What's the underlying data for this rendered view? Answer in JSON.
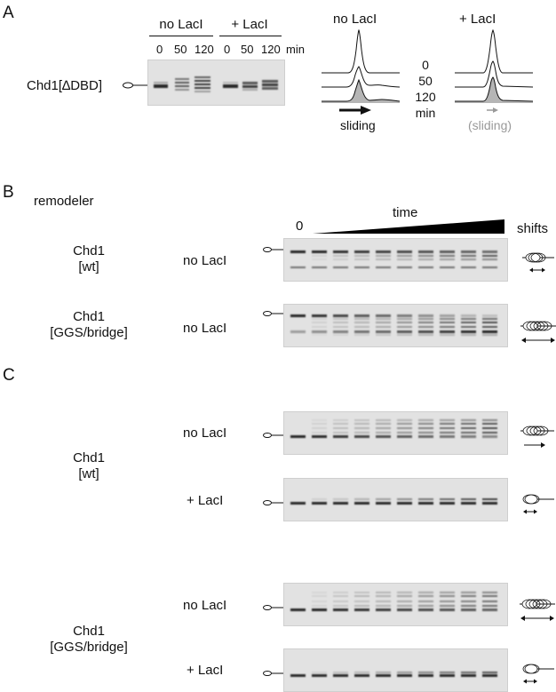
{
  "panels": {
    "a": "A",
    "b": "B",
    "c": "C"
  },
  "panelA": {
    "construct": "Chd1[∆DBD]",
    "groups": [
      "no LacI",
      "+ LacI"
    ],
    "times": [
      "0",
      "50",
      "120",
      "0",
      "50",
      "120"
    ],
    "time_unit": "min",
    "trace_titles": [
      "no LacI",
      "+ LacI"
    ],
    "trace_times": [
      "0",
      "50",
      "120",
      "min"
    ],
    "arrow_labels": [
      "sliding",
      "(sliding)"
    ]
  },
  "panelB": {
    "remodeler_label": "remodeler",
    "start_label": "0",
    "time_label": "time",
    "shifts_label": "shifts",
    "rows": [
      {
        "name_line1": "Chd1",
        "name_line2": "[wt]",
        "condition": "no LacI"
      },
      {
        "name_line1": "Chd1",
        "name_line2": "[GGS/bridge]",
        "condition": "no LacI"
      }
    ]
  },
  "panelC": {
    "groups": [
      {
        "name_line1": "Chd1",
        "name_line2": "[wt]",
        "conditions": [
          "no LacI",
          "+ LacI"
        ]
      },
      {
        "name_line1": "Chd1",
        "name_line2": "[GGS/bridge]",
        "conditions": [
          "no LacI",
          "+ LacI"
        ]
      }
    ]
  },
  "colors": {
    "band": "#1a1a1a",
    "gel_bg": "#e2e2e2",
    "trace_fill": "#b5b5b5",
    "faded_arrow": "#999999"
  }
}
